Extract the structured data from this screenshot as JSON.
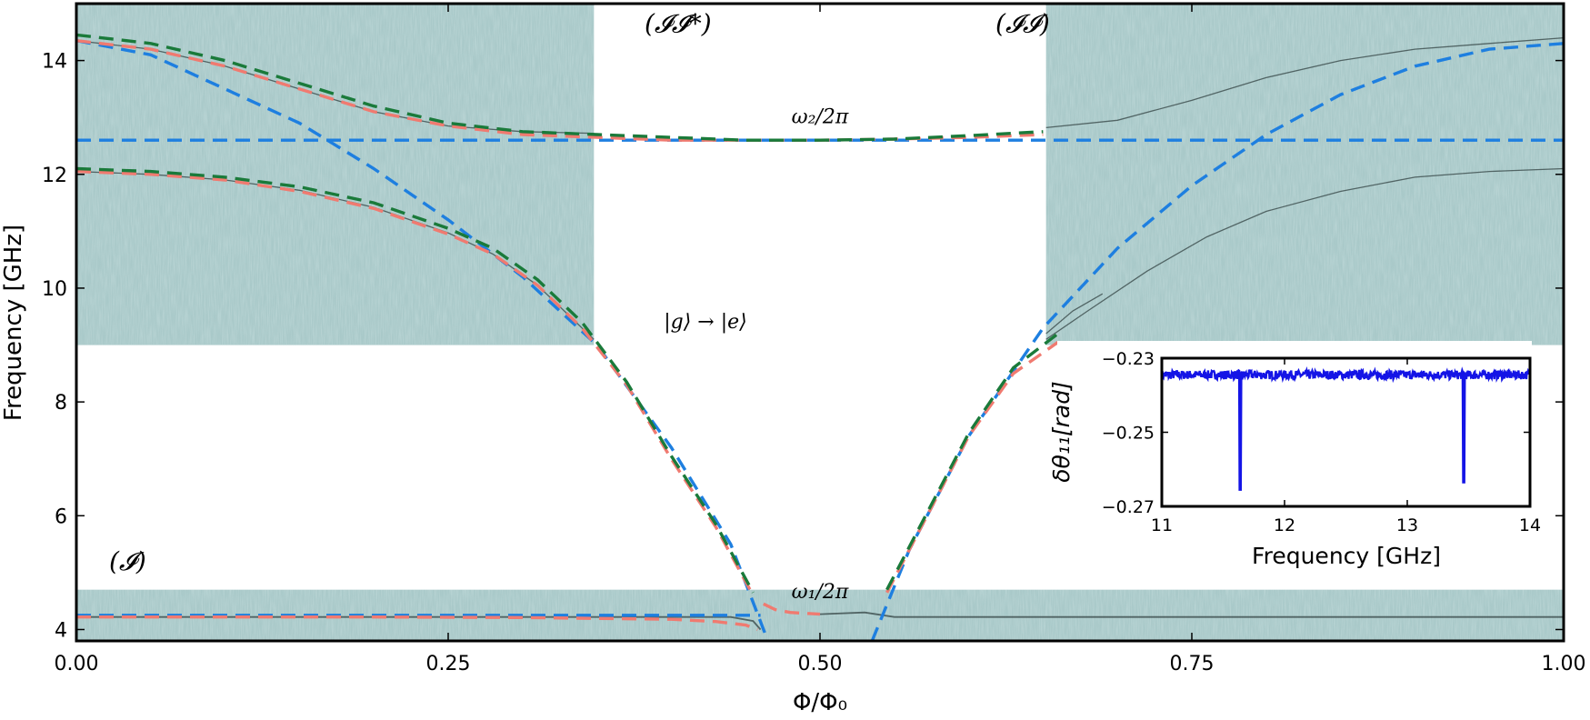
{
  "chart_data": [
    {
      "type": "line",
      "xlabel": "Φ/Φ₀",
      "ylabel": "Frequency [GHz]",
      "xlim": [
        0.0,
        1.0
      ],
      "ylim": [
        3.8,
        15.0
      ],
      "xticks": [
        "0.00",
        "0.25",
        "0.50",
        "0.75",
        "1.00"
      ],
      "xtick_values": [
        0.0,
        0.25,
        0.5,
        0.75,
        1.0
      ],
      "yticks": [
        "4",
        "6",
        "8",
        "10",
        "12",
        "14"
      ],
      "ytick_values": [
        4,
        6,
        8,
        10,
        12,
        14
      ],
      "grid": false,
      "colors": {
        "blue": "#1e7fe0",
        "green": "#1a7a3a",
        "salmon": "#f07a70",
        "measurement_bg": "#a9c9c9",
        "measured_trace": "#3a4a4a"
      },
      "measurement_regions": [
        {
          "x": [
            0.0,
            0.348
          ],
          "y": [
            9.0,
            15.0
          ]
        },
        {
          "x": [
            0.652,
            1.0
          ],
          "y": [
            9.0,
            15.0
          ]
        },
        {
          "x": [
            0.0,
            1.0
          ],
          "y": [
            3.8,
            4.7
          ]
        }
      ],
      "annotations": [
        {
          "text": "(𝓘𝓘*)",
          "x": 0.382,
          "y": 14.5,
          "kind": "region"
        },
        {
          "text": "(𝓘𝓘)",
          "x": 0.618,
          "y": 14.5,
          "kind": "region"
        },
        {
          "text": "(𝓘)",
          "x": 0.022,
          "y": 5.05,
          "kind": "region"
        },
        {
          "text": "ω₂/2π",
          "x": 0.5,
          "y": 12.9,
          "kind": "math"
        },
        {
          "text": "ω₁/2π",
          "x": 0.5,
          "y": 4.55,
          "kind": "math"
        },
        {
          "text": "|g⟩ → |e⟩",
          "x": 0.395,
          "y": 9.3,
          "kind": "math"
        }
      ],
      "series": [
        {
          "color": "blue",
          "style": "dashed",
          "x": [
            0.0,
            1.0
          ],
          "y": [
            12.6,
            12.6
          ]
        },
        {
          "color": "blue",
          "style": "dashed",
          "x": [
            0.0,
            0.46
          ],
          "y": [
            4.25,
            4.25
          ]
        },
        {
          "color": "blue",
          "style": "dashed",
          "x": [
            0.0,
            0.05,
            0.1,
            0.15,
            0.2,
            0.25,
            0.3,
            0.35,
            0.4,
            0.44,
            0.465
          ],
          "y": [
            14.35,
            14.1,
            13.5,
            12.9,
            12.1,
            11.2,
            10.2,
            9.0,
            7.2,
            5.5,
            3.8
          ]
        },
        {
          "color": "blue",
          "style": "dashed",
          "x": [
            0.535,
            0.56,
            0.6,
            0.65,
            0.7,
            0.75,
            0.8,
            0.85,
            0.9,
            0.95,
            1.0
          ],
          "y": [
            3.8,
            5.4,
            7.4,
            9.3,
            10.7,
            11.8,
            12.7,
            13.4,
            13.9,
            14.2,
            14.3
          ]
        },
        {
          "color": "salmon",
          "style": "dashed",
          "x": [
            0.0,
            0.05,
            0.1,
            0.15,
            0.2,
            0.25,
            0.3,
            0.35,
            0.4,
            0.45,
            0.5,
            0.55,
            0.6,
            0.65
          ],
          "y": [
            14.35,
            14.2,
            13.9,
            13.5,
            13.1,
            12.85,
            12.7,
            12.65,
            12.6,
            12.6,
            12.6,
            12.62,
            12.65,
            12.7
          ]
        },
        {
          "color": "green",
          "style": "dashed",
          "x": [
            0.0,
            0.05,
            0.1,
            0.15,
            0.2,
            0.25,
            0.3,
            0.35,
            0.4,
            0.45,
            0.5,
            0.55,
            0.6,
            0.65
          ],
          "y": [
            14.45,
            14.3,
            14.0,
            13.6,
            13.2,
            12.9,
            12.75,
            12.7,
            12.65,
            12.6,
            12.6,
            12.62,
            12.68,
            12.75
          ]
        },
        {
          "color": "salmon",
          "style": "dashed",
          "x": [
            0.0,
            0.05,
            0.1,
            0.15,
            0.2,
            0.25,
            0.28,
            0.31,
            0.34,
            0.37,
            0.4,
            0.43,
            0.455
          ],
          "y": [
            12.05,
            12.0,
            11.9,
            11.7,
            11.4,
            10.95,
            10.6,
            10.05,
            9.3,
            8.3,
            7.0,
            5.8,
            4.6
          ]
        },
        {
          "color": "green",
          "style": "dashed",
          "x": [
            0.0,
            0.05,
            0.1,
            0.15,
            0.2,
            0.25,
            0.28,
            0.31,
            0.34,
            0.37,
            0.4,
            0.43,
            0.455
          ],
          "y": [
            12.1,
            12.05,
            11.95,
            11.78,
            11.5,
            11.05,
            10.7,
            10.15,
            9.4,
            8.35,
            7.05,
            5.85,
            4.65
          ]
        },
        {
          "color": "salmon",
          "style": "dashed",
          "x": [
            0.0,
            0.1,
            0.2,
            0.3,
            0.4,
            0.43,
            0.45,
            0.458
          ],
          "y": [
            4.22,
            4.22,
            4.22,
            4.21,
            4.18,
            4.14,
            4.08,
            4.0
          ]
        },
        {
          "color": "salmon",
          "style": "dashed",
          "x": [
            0.462,
            0.47,
            0.48,
            0.5
          ],
          "y": [
            4.45,
            4.35,
            4.3,
            4.27
          ]
        },
        {
          "color": "salmon",
          "style": "dashed",
          "x": [
            0.545,
            0.57,
            0.6,
            0.63,
            0.66
          ],
          "y": [
            4.65,
            5.9,
            7.4,
            8.5,
            9.05
          ]
        },
        {
          "color": "green",
          "style": "dashed",
          "x": [
            0.545,
            0.57,
            0.6,
            0.63,
            0.66
          ],
          "y": [
            4.7,
            5.95,
            7.45,
            8.6,
            9.2
          ]
        }
      ]
    },
    {
      "type": "line",
      "xlabel": "Frequency [GHz]",
      "ylabel": "δθ₁₁[rad]",
      "xlim": [
        11.0,
        14.0
      ],
      "ylim": [
        -0.27,
        -0.23
      ],
      "xticks": [
        "11",
        "12",
        "13",
        "14"
      ],
      "xtick_values": [
        11,
        12,
        13,
        14
      ],
      "yticks": [
        "−0.23",
        "−0.25",
        "−0.27"
      ],
      "ytick_values": [
        -0.23,
        -0.25,
        -0.27
      ],
      "grid": false,
      "series": [
        {
          "color": "#1414e6",
          "baseline": -0.2345,
          "noise": 0.0012,
          "dips": [
            {
              "x": 11.64,
              "y": -0.2655
            },
            {
              "x": 13.46,
              "y": -0.2635
            }
          ]
        }
      ]
    }
  ]
}
